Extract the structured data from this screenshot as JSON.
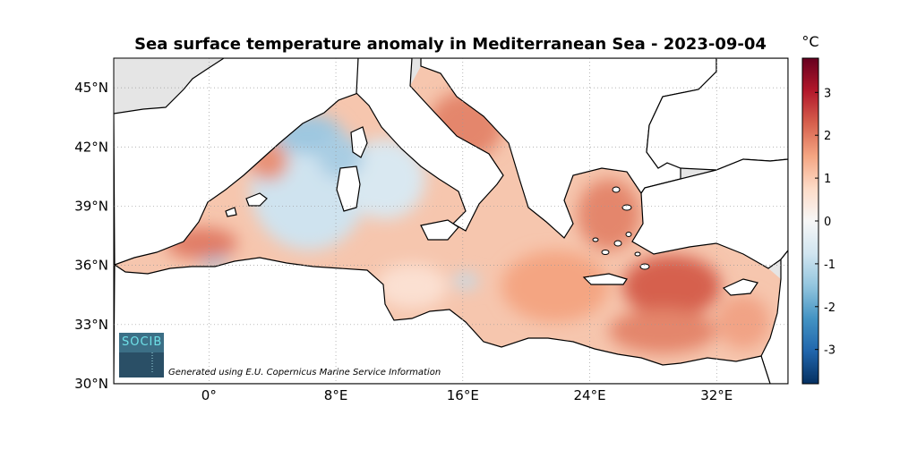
{
  "title": "Sea surface temperature anomaly in Mediterranean Sea - 2023-09-04",
  "map": {
    "lon_range": [
      -6,
      36.5
    ],
    "lat_range": [
      30,
      46.5
    ],
    "x_ticks": [
      {
        "value": 0,
        "label": "0°"
      },
      {
        "value": 8,
        "label": "8°E"
      },
      {
        "value": 16,
        "label": "16°E"
      },
      {
        "value": 24,
        "label": "24°E"
      },
      {
        "value": 32,
        "label": "32°E"
      }
    ],
    "y_ticks": [
      {
        "value": 30,
        "label": "30°N"
      },
      {
        "value": 33,
        "label": "33°N"
      },
      {
        "value": 36,
        "label": "36°N"
      },
      {
        "value": 39,
        "label": "39°N"
      },
      {
        "value": 42,
        "label": "42°N"
      },
      {
        "value": 45,
        "label": "45°N"
      }
    ],
    "grid": "dotted",
    "land_color": "#ffffff",
    "nodata_color": "#e5e5e5"
  },
  "colorbar": {
    "unit": "°C",
    "range": [
      -3.8,
      3.8
    ],
    "ticks": [
      {
        "value": 3,
        "label": "3"
      },
      {
        "value": 2,
        "label": "2"
      },
      {
        "value": 1,
        "label": "1"
      },
      {
        "value": 0,
        "label": "0"
      },
      {
        "value": -1,
        "label": "-1"
      },
      {
        "value": -2,
        "label": "-2"
      },
      {
        "value": -3,
        "label": "-3"
      }
    ],
    "colors": [
      "#053061",
      "#2166ac",
      "#4393c3",
      "#92c5de",
      "#d1e5f0",
      "#f7f7f7",
      "#fddbc7",
      "#f4a582",
      "#d6604d",
      "#b2182b",
      "#67001f"
    ]
  },
  "logo": {
    "text": "SOCIB"
  },
  "credit": "Generated using E.U. Copernicus Marine Service Information"
}
